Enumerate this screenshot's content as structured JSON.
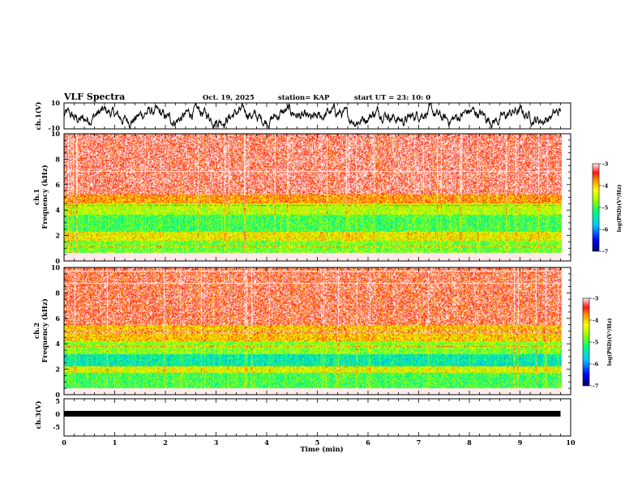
{
  "header": {
    "title": "VLF Spectra",
    "date": "Oct. 19, 2025",
    "station": "station= KAP",
    "start": "start  UT  =   23: 10: 0"
  },
  "chart_data": [
    {
      "type": "line",
      "name": "ch1-waveform",
      "ylabel": "ch.1(V)",
      "ylim": [
        -10,
        10
      ],
      "y_ticks": [
        "10",
        "-10"
      ],
      "x_range_min": [
        0,
        9.8
      ]
    },
    {
      "type": "heatmap",
      "name": "ch1-spectrogram",
      "ylabel": "ch.1\nFrequency (kHz)",
      "ylim": [
        0,
        10
      ],
      "y_ticks": [
        "0",
        "2",
        "4",
        "6",
        "8",
        "10"
      ],
      "colorbar": {
        "label": "log(PSD)(V²/Hz)",
        "range": [
          -7,
          -3
        ],
        "ticks": [
          "-3",
          "-4",
          "-5",
          "-6",
          "-7"
        ]
      },
      "bands_khz": [
        {
          "from": 0.0,
          "to": 0.6,
          "level": -2.4
        },
        {
          "from": 0.6,
          "to": 1.6,
          "level": -4.8
        },
        {
          "from": 1.6,
          "to": 2.3,
          "level": -4.2
        },
        {
          "from": 2.3,
          "to": 3.6,
          "level": -5.0
        },
        {
          "from": 3.6,
          "to": 4.5,
          "level": -4.5
        },
        {
          "from": 4.5,
          "to": 5.2,
          "level": -3.8
        },
        {
          "from": 5.2,
          "to": 10.0,
          "level": -3.2
        }
      ]
    },
    {
      "type": "heatmap",
      "name": "ch2-spectrogram",
      "ylabel": "ch.2\nFrequency (kHz)",
      "ylim": [
        0,
        10
      ],
      "y_ticks": [
        "0",
        "2",
        "4",
        "6",
        "8",
        "10"
      ],
      "colorbar": {
        "label": "log(PSD)(V²/Hz)",
        "range": [
          -7,
          -3
        ],
        "ticks": [
          "-3",
          "-4",
          "-5",
          "-6",
          "-7"
        ]
      },
      "bands_khz": [
        {
          "from": 0.0,
          "to": 0.5,
          "level": -2.4
        },
        {
          "from": 0.5,
          "to": 1.7,
          "level": -5.0
        },
        {
          "from": 1.7,
          "to": 2.2,
          "level": -4.3
        },
        {
          "from": 2.2,
          "to": 3.2,
          "level": -5.4
        },
        {
          "from": 3.2,
          "to": 4.2,
          "level": -4.7
        },
        {
          "from": 4.2,
          "to": 5.5,
          "level": -4.0
        },
        {
          "from": 5.5,
          "to": 10.0,
          "level": -3.3
        }
      ]
    },
    {
      "type": "line",
      "name": "ch3-waveform",
      "ylabel": "ch.3(V)",
      "ylim": [
        -5,
        5
      ],
      "y_ticks": [
        "5",
        "0",
        "-5"
      ],
      "level_v": 0,
      "x_range_min": [
        0,
        9.8
      ]
    }
  ],
  "x_axis": {
    "label": "Time  (min)",
    "range": [
      0,
      10
    ],
    "ticks": [
      "0",
      "1",
      "2",
      "3",
      "4",
      "5",
      "6",
      "7",
      "8",
      "9",
      "10"
    ]
  }
}
